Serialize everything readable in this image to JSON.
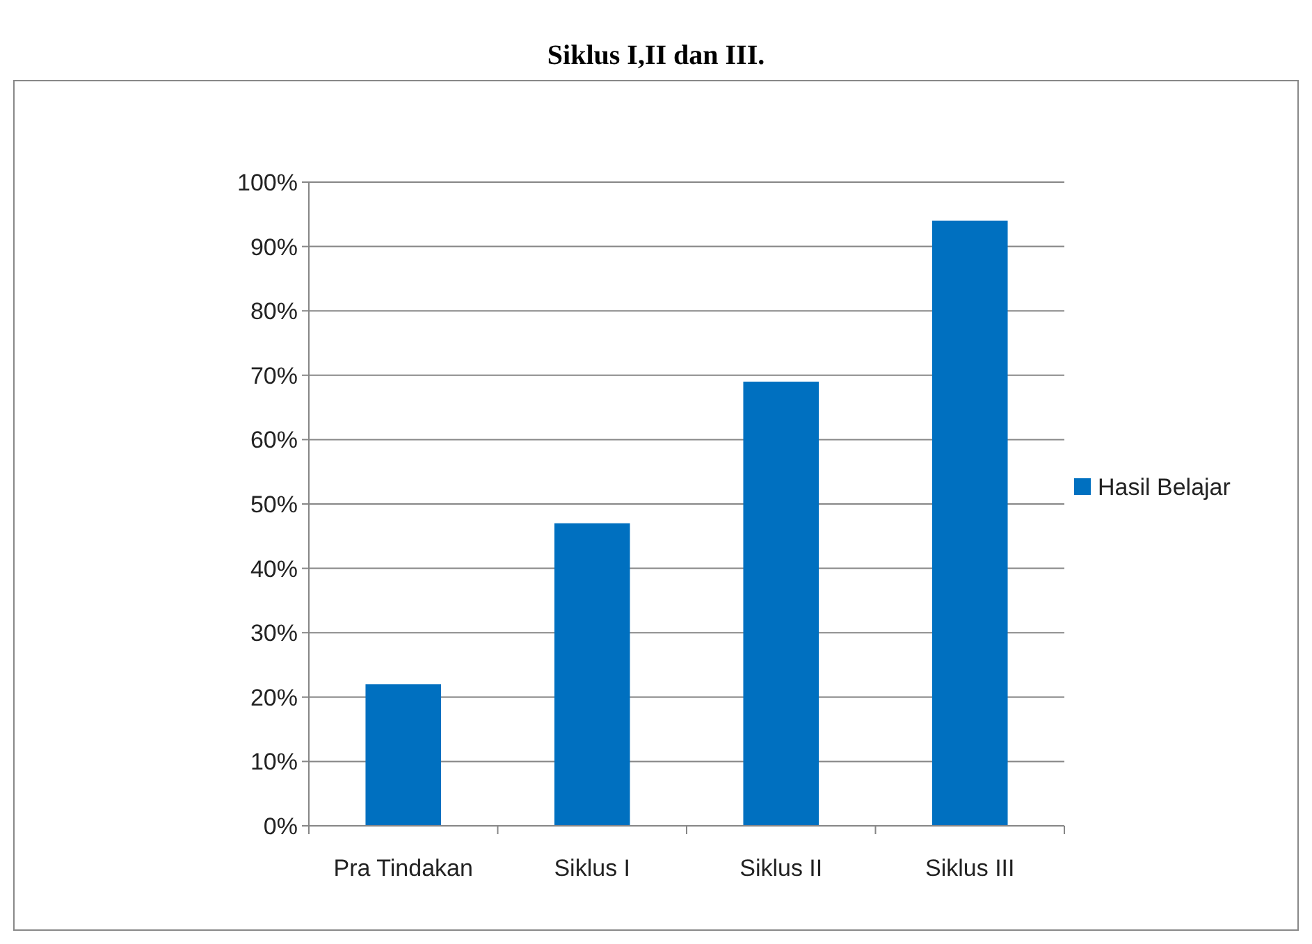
{
  "chart_data": {
    "type": "bar",
    "title": "Siklus I,II dan III.",
    "categories": [
      "Pra Tindakan",
      "Siklus I",
      "Siklus II",
      "Siklus III"
    ],
    "series": [
      {
        "name": "Hasil Belajar",
        "color": "#0070c0",
        "values": [
          22,
          47,
          69,
          94
        ]
      }
    ],
    "ylim": [
      0,
      100
    ],
    "yticks": [
      {
        "value": 0,
        "label": "0%"
      },
      {
        "value": 10,
        "label": "10%"
      },
      {
        "value": 20,
        "label": "20%"
      },
      {
        "value": 30,
        "label": "30%"
      },
      {
        "value": 40,
        "label": "40%"
      },
      {
        "value": 50,
        "label": "50%"
      },
      {
        "value": 60,
        "label": "60%"
      },
      {
        "value": 70,
        "label": "70%"
      },
      {
        "value": 80,
        "label": "80%"
      },
      {
        "value": 90,
        "label": "90%"
      },
      {
        "value": 100,
        "label": "100%"
      }
    ],
    "grid": "y",
    "legend": "right"
  }
}
